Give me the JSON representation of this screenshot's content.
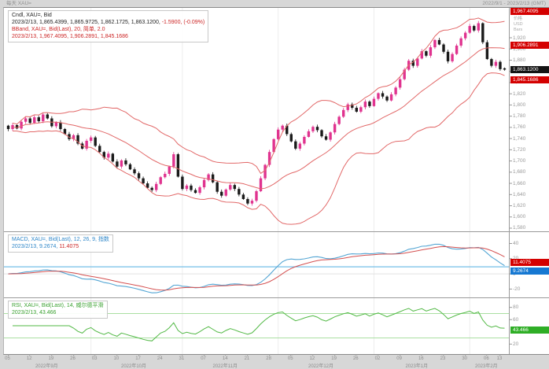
{
  "window": {
    "title_left": "每天  XAU=",
    "title_right": "2022/9/1 - 2023/2/13 (GMT)"
  },
  "legend_main": {
    "line1": "Cndl, XAU=, Bid",
    "line2_black": "2023/2/13, 1,865.4399, 1,865.9725, 1,862.1725, 1,863.1200,",
    "line2_red": " -1.5900, (-0.09%)",
    "line3": "BBand, XAU=, Bid(Last), 20, 简单, 2.0",
    "line4": "2023/2/13, 1,967.4095, 1,906.2891, 1,845.1686"
  },
  "legend_macd": {
    "line1": "MACD, XAU=, Bid(Last), 12, 26, 9, 指数",
    "line2_blue": "2023/2/13, 9.2674,",
    "line2_red": " 11.4075"
  },
  "legend_rsi": {
    "line1": "RSI, XAU=, Bid(Last), 14, 威尔德平滑",
    "line2": "2023/2/13, 43.466"
  },
  "axis": {
    "header_lines": [
      "价格",
      "USD",
      "Bars"
    ],
    "price_ticks": [
      1920,
      1900,
      1880,
      1860,
      1840,
      1820,
      1800,
      1780,
      1760,
      1740,
      1720,
      1700,
      1680,
      1660,
      1640,
      1620,
      1600,
      1580
    ],
    "bb_upper_label": "1,967.4095",
    "bb_mid_label": "1,906.2891",
    "last_price_label": "1,863.1200",
    "bb_lower_label": "1,845.1686",
    "macd_ticks": [
      40,
      20,
      0,
      -20
    ],
    "macd_signal_label": "11.4075",
    "macd_value_label": "9.2674",
    "rsi_ticks": [
      80,
      60,
      20
    ],
    "rsi_value_label": "43.466"
  },
  "time_axis": {
    "day_ticks": [
      "05",
      "12",
      "19",
      "26",
      "03",
      "10",
      "17",
      "24",
      "31",
      "07",
      "14",
      "21",
      "28",
      "05",
      "12",
      "19",
      "26",
      "02",
      "09",
      "16",
      "23",
      "30",
      "06",
      "13"
    ],
    "day_tick_indices": [
      0,
      5,
      10,
      15,
      20,
      25,
      30,
      35,
      40,
      45,
      50,
      55,
      60,
      65,
      70,
      75,
      80,
      85,
      90,
      95,
      100,
      105,
      110,
      113
    ],
    "months": [
      {
        "label": "2022年9月",
        "index": 9
      },
      {
        "label": "2022年10月",
        "index": 29
      },
      {
        "label": "2022年11月",
        "index": 50
      },
      {
        "label": "2022年12月",
        "index": 72
      },
      {
        "label": "2023年1月",
        "index": 94
      },
      {
        "label": "2023年2月",
        "index": 110
      }
    ],
    "month_start_indices": [
      19,
      40,
      62,
      84,
      106
    ]
  },
  "chart_data": {
    "type": "candlestick",
    "symbol": "XAU=",
    "interval": "daily",
    "date_range": "2022/9/1 - 2023/2/13 (GMT)",
    "price_axis_range": [
      1576,
      1972
    ],
    "last_candle": {
      "date": "2023/2/13",
      "open": 1865.4399,
      "high": 1865.9725,
      "low": 1862.1725,
      "close": 1863.12,
      "change": -1.59,
      "change_pct": "-0.09%"
    },
    "bollinger": {
      "period": 20,
      "ma_type": "简单",
      "stdev": 2.0,
      "upper": 1967.4095,
      "middle": 1906.2891,
      "lower": 1845.1686
    },
    "macd": {
      "fast": 12,
      "slow": 26,
      "signal_period": 9,
      "ma_type": "指数",
      "macd_value": 9.2674,
      "signal_value": 11.4075
    },
    "rsi": {
      "period": 14,
      "smoothing": "威尔德平滑",
      "value": 43.466,
      "upper_band": 70,
      "lower_band": 30
    },
    "closes": [
      1757,
      1764,
      1758,
      1770,
      1776,
      1768,
      1778,
      1771,
      1783,
      1776,
      1762,
      1769,
      1757,
      1748,
      1739,
      1746,
      1731,
      1722,
      1736,
      1742,
      1727,
      1716,
      1706,
      1713,
      1699,
      1690,
      1701,
      1694,
      1685,
      1678,
      1669,
      1660,
      1652,
      1648,
      1659,
      1671,
      1677,
      1690,
      1712,
      1672,
      1650,
      1656,
      1648,
      1643,
      1653,
      1666,
      1676,
      1662,
      1645,
      1638,
      1649,
      1657,
      1650,
      1640,
      1632,
      1624,
      1629,
      1646,
      1669,
      1693,
      1716,
      1739,
      1756,
      1763,
      1748,
      1735,
      1722,
      1731,
      1743,
      1753,
      1761,
      1755,
      1744,
      1738,
      1751,
      1766,
      1779,
      1791,
      1801,
      1795,
      1788,
      1796,
      1806,
      1798,
      1811,
      1821,
      1815,
      1808,
      1819,
      1831,
      1846,
      1863,
      1879,
      1870,
      1883,
      1896,
      1888,
      1903,
      1916,
      1908,
      1895,
      1878,
      1891,
      1906,
      1919,
      1929,
      1941,
      1933,
      1946,
      1912,
      1882,
      1870,
      1877,
      1864,
      1863.12
    ]
  },
  "colors": {
    "candle_up": "#e0338f",
    "candle_down": "#1a1a1a",
    "bband": "#e26868",
    "macd_line": "#55a6d4",
    "macd_signal": "#d45050",
    "macd_hline": "#74bfe8",
    "rsi_line": "#52b945",
    "rsi_band": "#aadfa2",
    "label_red_bg": "#d40000",
    "label_black_bg": "#141414",
    "label_blue_bg": "#1678d2",
    "label_green_bg": "#2fae26",
    "axis_text": "#999999",
    "grid": "#ededed"
  }
}
